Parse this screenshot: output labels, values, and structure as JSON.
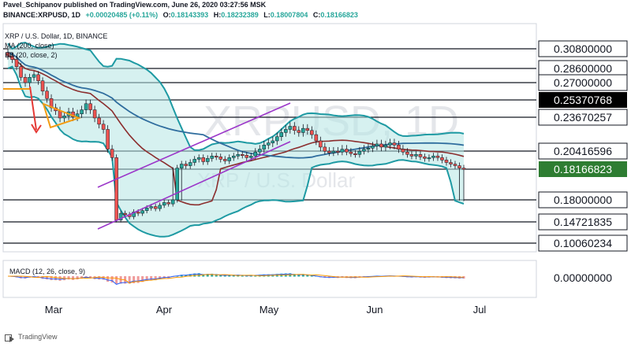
{
  "header": {
    "published": "Pavel_Schipanov published on TradingView.com, June 26, 2020 03:27:56 MSK",
    "symbol": "BINANCE:XRPUSD, 1D",
    "open_label": "O:",
    "open": "0.18143393",
    "high_label": "H:",
    "high": "0.18232389",
    "low_label": "L:",
    "low": "0.18007804",
    "close_label": "C:",
    "close": "0.18166823",
    "change": "+0.00020485 (+0.11%)"
  },
  "legend": {
    "line1": "XRP / U.S. Dollar, 1D, BINANCE",
    "line2": "MA (200, close)",
    "line3": "BB (20, close, 2)"
  },
  "watermark": {
    "symbol": "XRPUSD, 1D",
    "name": "XRP / U.S. Dollar"
  },
  "footer": {
    "brand": "TradingView"
  },
  "colors": {
    "level_line": "#131722",
    "bb_band": "#1e9aa3",
    "bb_fill": "#b5e6e4",
    "ma200": "#2f6d9e",
    "basis": "#8b2e2e",
    "channel": "#9b36c9",
    "annotation_arrow": "#e53935",
    "annotation_flag": "#f39c12",
    "candle_up": "#26a69a",
    "candle_down": "#ef5350",
    "current_price_bg": "#2e7d32",
    "highlight_price_bg": "#000000",
    "macd_line": "#2962ff",
    "signal_line": "#ff9800"
  },
  "chart_data": {
    "type": "candlestick",
    "y_scale": "piecewise (non-linear) price axis",
    "price_levels": [
      {
        "label": "0.30800000"
      },
      {
        "label": "0.28600000"
      },
      {
        "label": "0.27000000"
      },
      {
        "label": "0.25370768",
        "highlight": true
      },
      {
        "label": "0.23670257"
      },
      {
        "label": "0.20416596"
      },
      {
        "label": "0.18166823",
        "current": true
      },
      {
        "label": "0.18000000"
      },
      {
        "label": "0.14721835"
      },
      {
        "label": "0.10060234"
      }
    ],
    "x_ticks": [
      "Mar",
      "Apr",
      "May",
      "Jun",
      "Jul"
    ],
    "macd": {
      "label": "MACD (12, 26, close, 9)",
      "zero_label": "0.00000000"
    },
    "close_series": [
      0.3,
      0.296,
      0.288,
      0.276,
      0.27,
      0.276,
      0.279,
      0.272,
      0.262,
      0.255,
      0.246,
      0.243,
      0.236,
      0.238,
      0.242,
      0.237,
      0.24,
      0.244,
      0.25,
      0.244,
      0.236,
      0.23,
      0.225,
      0.206,
      0.196,
      0.15,
      0.16,
      0.158,
      0.155,
      0.162,
      0.16,
      0.164,
      0.168,
      0.17,
      0.167,
      0.172,
      0.176,
      0.174,
      0.18,
      0.183,
      0.188,
      0.186,
      0.19,
      0.194,
      0.196,
      0.191,
      0.195,
      0.198,
      0.197,
      0.194,
      0.192,
      0.196,
      0.198,
      0.2,
      0.199,
      0.196,
      0.198,
      0.203,
      0.206,
      0.21,
      0.212,
      0.214,
      0.218,
      0.222,
      0.225,
      0.228,
      0.224,
      0.222,
      0.226,
      0.224,
      0.22,
      0.214,
      0.208,
      0.204,
      0.202,
      0.204,
      0.203,
      0.206,
      0.203,
      0.201,
      0.2,
      0.204,
      0.206,
      0.207,
      0.209,
      0.211,
      0.208,
      0.21,
      0.212,
      0.21,
      0.206,
      0.203,
      0.2,
      0.198,
      0.2,
      0.197,
      0.195,
      0.196,
      0.198,
      0.196,
      0.193,
      0.19,
      0.188,
      0.186,
      0.183,
      0.182
    ]
  }
}
